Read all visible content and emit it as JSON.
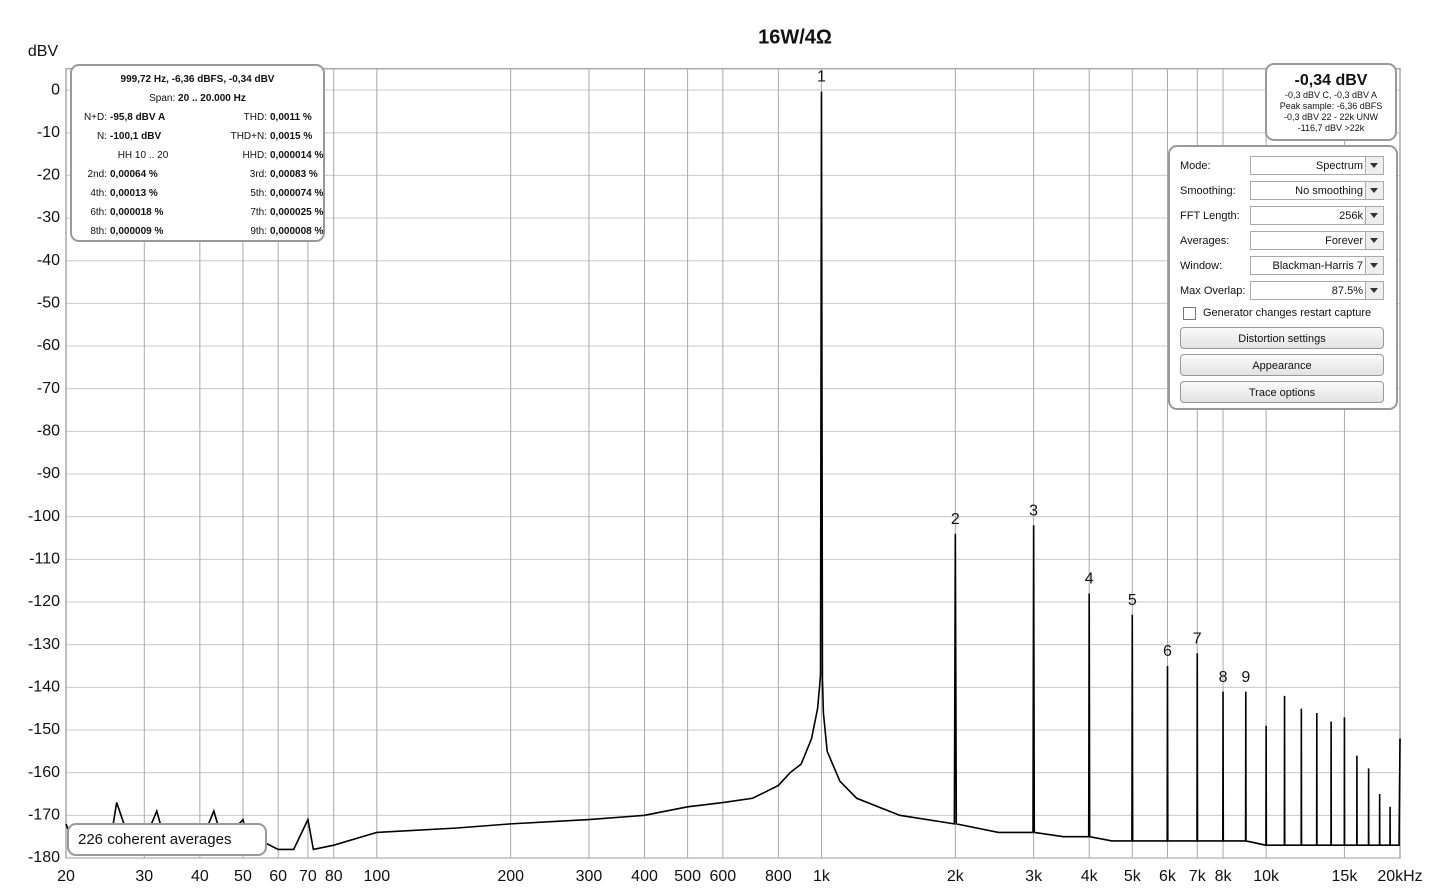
{
  "chart_data": {
    "type": "line",
    "title": "16W/4Ω",
    "y_label": "dBV",
    "log_x": true,
    "grid": true,
    "xlim": [
      20,
      20000
    ],
    "ylim": [
      -180,
      5
    ],
    "xticks": [
      20,
      30,
      40,
      50,
      60,
      70,
      80,
      100,
      200,
      300,
      400,
      500,
      600,
      800,
      {
        "value": 1000,
        "label": "1k"
      },
      {
        "value": 2000,
        "label": "2k"
      },
      {
        "value": 3000,
        "label": "3k"
      },
      {
        "value": 4000,
        "label": "4k"
      },
      {
        "value": 5000,
        "label": "5k"
      },
      {
        "value": 6000,
        "label": "6k"
      },
      {
        "value": 7000,
        "label": "7k"
      },
      {
        "value": 8000,
        "label": "8k"
      },
      {
        "value": 10000,
        "label": "10k"
      },
      {
        "value": 15000,
        "label": "15k"
      },
      {
        "value": 20000,
        "label": "20kHz"
      }
    ],
    "yticks": [
      0,
      -10,
      -20,
      -30,
      -40,
      -50,
      -60,
      -70,
      -80,
      -90,
      -100,
      -110,
      -120,
      -130,
      -140,
      -150,
      -160,
      -170,
      -180
    ],
    "x": [
      20,
      21,
      22,
      25,
      26,
      27,
      28,
      30,
      32,
      33,
      35,
      40,
      43,
      45,
      48,
      50,
      52,
      55,
      60,
      65,
      70,
      72,
      80,
      100,
      150,
      200,
      300,
      400,
      500,
      600,
      700,
      800,
      850,
      900,
      950,
      980,
      990,
      995,
      1000,
      1005,
      1010,
      1030,
      1100,
      1200,
      1500,
      1990,
      2000,
      2010,
      2500,
      2990,
      3000,
      3010,
      3500,
      3990,
      4000,
      4010,
      4500,
      4990,
      5000,
      5010,
      5990,
      6000,
      6010,
      6990,
      7000,
      7010,
      7990,
      8000,
      8010,
      8990,
      9000,
      9010,
      9990,
      10000,
      10010,
      10990,
      11000,
      11010,
      11990,
      12000,
      12010,
      12990,
      13000,
      13010,
      13990,
      14000,
      14010,
      14990,
      15000,
      15010,
      15990,
      16000,
      16010,
      16990,
      17000,
      17010,
      17990,
      18000,
      18010,
      18990,
      19000,
      19010,
      19900,
      20000
    ],
    "series": [
      {
        "color": "#000000",
        "values": [
          -172,
          -178,
          -176,
          -178,
          -167,
          -172,
          -178,
          -176,
          -169,
          -174,
          -178,
          -177,
          -169,
          -176,
          -173,
          -171,
          -178,
          -176,
          -178,
          -178,
          -171,
          -178,
          -177,
          -174,
          -173,
          -172,
          -171,
          -170,
          -168,
          -167,
          -166,
          -163,
          -160,
          -158,
          -152,
          -145,
          -140,
          -137,
          -0.34,
          -138,
          -146,
          -155,
          -162,
          -166,
          -170,
          -172,
          -104,
          -172,
          -174,
          -174,
          -102,
          -174,
          -175,
          -175,
          -118,
          -175,
          -176,
          -176,
          -123,
          -176,
          -176,
          -135,
          -176,
          -176,
          -132,
          -176,
          -176,
          -141,
          -176,
          -176,
          -141,
          -176,
          -177,
          -149,
          -177,
          -177,
          -142,
          -177,
          -177,
          -145,
          -177,
          -177,
          -146,
          -177,
          -177,
          -148,
          -177,
          -177,
          -147,
          -177,
          -177,
          -156,
          -177,
          -177,
          -159,
          -177,
          -177,
          -165,
          -177,
          -177,
          -168,
          -177,
          -177,
          -152
        ]
      }
    ],
    "annotations": [
      {
        "text": "1",
        "x": 1000
      },
      {
        "text": "2",
        "x": 2000
      },
      {
        "text": "3",
        "x": 3000
      },
      {
        "text": "4",
        "x": 4000
      },
      {
        "text": "5",
        "x": 5000
      },
      {
        "text": "6",
        "x": 6000
      },
      {
        "text": "7",
        "x": 7000
      },
      {
        "text": "8",
        "x": 8000
      },
      {
        "text": "9",
        "x": 9000
      }
    ]
  },
  "stats_panel": {
    "header": "999,72 Hz, -6,36 dBFS, -0,34 dBV",
    "span_label": "Span:",
    "span_value": "20 .. 20.000 Hz",
    "rows": [
      [
        [
          "N+D:",
          "-95,8 dBV A"
        ],
        [
          "THD:",
          "0,0011 %"
        ]
      ],
      [
        [
          "N:",
          "-100,1 dBV"
        ],
        [
          "THD+N:",
          "0,0015 %"
        ]
      ],
      [
        [
          "HH 10 .. 20"
        ],
        [
          "HHD:",
          "0,000014 %"
        ]
      ],
      [
        [
          "2nd:",
          "0,00064 %"
        ],
        [
          "3rd:",
          "0,00083 %"
        ]
      ],
      [
        [
          "4th:",
          "0,00013 %"
        ],
        [
          "5th:",
          "0,000074 %"
        ]
      ],
      [
        [
          "6th:",
          "0,000018 %"
        ],
        [
          "7th:",
          "0,000025 %"
        ]
      ],
      [
        [
          "8th:",
          "0,000009 %"
        ],
        [
          "9th:",
          "0,000008 %"
        ]
      ]
    ]
  },
  "level_panel": {
    "value": "-0,34 dBV",
    "lines": [
      "-0,3 dBV C, -0,3 dBV A",
      "Peak sample: -6,36 dBFS",
      "-0,3 dBV 22 - 22k UNW",
      "-116,7 dBV >22k"
    ]
  },
  "settings_panel": {
    "fields": [
      {
        "label": "Mode:",
        "value": "Spectrum"
      },
      {
        "label": "Smoothing:",
        "value": "No  smoothing"
      },
      {
        "label": "FFT Length:",
        "value": "256k"
      },
      {
        "label": "Averages:",
        "value": "Forever"
      },
      {
        "label": "Window:",
        "value": "Blackman-Harris 7"
      },
      {
        "label": "Max Overlap:",
        "value": "87.5%"
      }
    ],
    "checkbox": "Generator changes restart capture",
    "buttons": [
      "Distortion settings",
      "Appearance",
      "Trace options"
    ]
  },
  "averages_label": "226 coherent averages"
}
